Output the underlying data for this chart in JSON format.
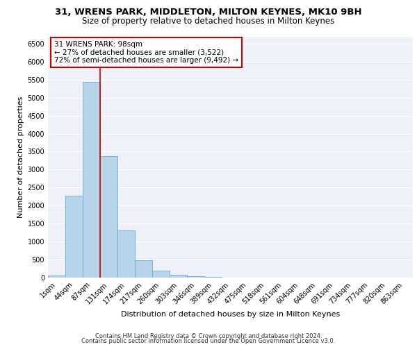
{
  "title_line1": "31, WRENS PARK, MIDDLETON, MILTON KEYNES, MK10 9BH",
  "title_line2": "Size of property relative to detached houses in Milton Keynes",
  "xlabel": "Distribution of detached houses by size in Milton Keynes",
  "ylabel": "Number of detached properties",
  "footnote_line1": "Contains HM Land Registry data © Crown copyright and database right 2024.",
  "footnote_line2": "Contains public sector information licensed under the Open Government Licence v3.0.",
  "bar_labels": [
    "1sqm",
    "44sqm",
    "87sqm",
    "131sqm",
    "174sqm",
    "217sqm",
    "260sqm",
    "303sqm",
    "346sqm",
    "389sqm",
    "432sqm",
    "475sqm",
    "518sqm",
    "561sqm",
    "604sqm",
    "648sqm",
    "691sqm",
    "734sqm",
    "777sqm",
    "820sqm",
    "863sqm"
  ],
  "bar_values": [
    60,
    2280,
    5430,
    3380,
    1310,
    480,
    185,
    75,
    40,
    10,
    5,
    5,
    0,
    0,
    0,
    0,
    0,
    0,
    0,
    0,
    0
  ],
  "bar_color": "#b8d4ea",
  "bar_edge_color": "#6aaad4",
  "property_line_x": 2.5,
  "property_line_color": "#cc0000",
  "annotation_text": "31 WRENS PARK: 98sqm\n← 27% of detached houses are smaller (3,522)\n72% of semi-detached houses are larger (9,492) →",
  "annotation_box_color": "#ffffff",
  "annotation_box_edge": "#cc0000",
  "ylim": [
    0,
    6700
  ],
  "yticks": [
    0,
    500,
    1000,
    1500,
    2000,
    2500,
    3000,
    3500,
    4000,
    4500,
    5000,
    5500,
    6000,
    6500
  ],
  "background_color": "#eef2f8",
  "title_fontsize": 9.5,
  "subtitle_fontsize": 8.5,
  "axis_label_fontsize": 8,
  "tick_fontsize": 7,
  "annotation_fontsize": 7.5,
  "footnote_fontsize": 6
}
